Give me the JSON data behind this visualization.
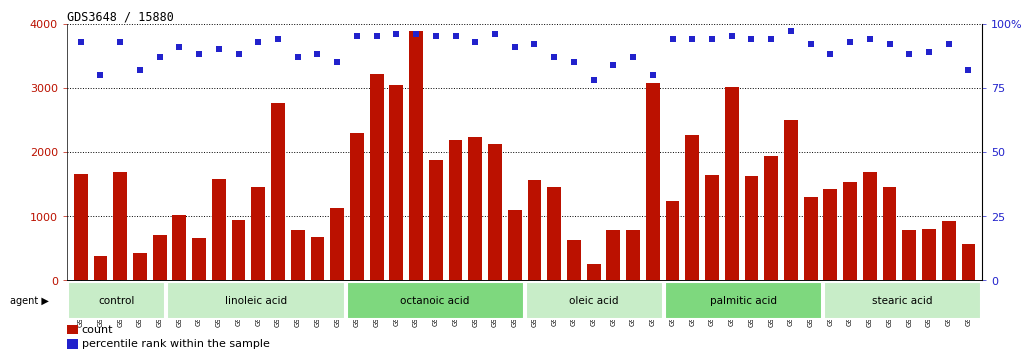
{
  "title": "GDS3648 / 15880",
  "samples": [
    "GSM525196",
    "GSM525197",
    "GSM525198",
    "GSM525199",
    "GSM525200",
    "GSM525201",
    "GSM525202",
    "GSM525203",
    "GSM525204",
    "GSM525205",
    "GSM525206",
    "GSM525207",
    "GSM525208",
    "GSM525209",
    "GSM525210",
    "GSM525211",
    "GSM525212",
    "GSM525213",
    "GSM525214",
    "GSM525215",
    "GSM525216",
    "GSM525217",
    "GSM525218",
    "GSM525219",
    "GSM525220",
    "GSM525221",
    "GSM525222",
    "GSM525223",
    "GSM525224",
    "GSM525225",
    "GSM525226",
    "GSM525227",
    "GSM525228",
    "GSM525229",
    "GSM525230",
    "GSM525231",
    "GSM525232",
    "GSM525233",
    "GSM525234",
    "GSM525235",
    "GSM525236",
    "GSM525237",
    "GSM525238",
    "GSM525239",
    "GSM525240",
    "GSM525241"
  ],
  "counts": [
    1650,
    370,
    1680,
    420,
    700,
    1020,
    660,
    1580,
    940,
    1460,
    2760,
    780,
    670,
    1120,
    2300,
    3220,
    3050,
    3880,
    1870,
    2180,
    2230,
    2120,
    1100,
    1560,
    1460,
    620,
    250,
    790,
    780,
    3080,
    1230,
    2260,
    1640,
    3010,
    1620,
    1930,
    2490,
    1300,
    1420,
    1530,
    1690,
    1460,
    780,
    800,
    930,
    560
  ],
  "percentiles": [
    93,
    80,
    93,
    82,
    87,
    91,
    88,
    90,
    88,
    93,
    94,
    87,
    88,
    85,
    95,
    95,
    96,
    96,
    95,
    95,
    93,
    96,
    91,
    92,
    87,
    85,
    78,
    84,
    87,
    80,
    94,
    94,
    94,
    95,
    94,
    94,
    97,
    92,
    88,
    93,
    94,
    92,
    88,
    89,
    92,
    82
  ],
  "groups": [
    {
      "label": "control",
      "start": 0,
      "end": 4,
      "color": "#c8edc8"
    },
    {
      "label": "linoleic acid",
      "start": 5,
      "end": 13,
      "color": "#c8edc8"
    },
    {
      "label": "octanoic acid",
      "start": 14,
      "end": 22,
      "color": "#7ed87e"
    },
    {
      "label": "oleic acid",
      "start": 23,
      "end": 29,
      "color": "#c8edc8"
    },
    {
      "label": "palmitic acid",
      "start": 30,
      "end": 37,
      "color": "#7ed87e"
    },
    {
      "label": "stearic acid",
      "start": 38,
      "end": 45,
      "color": "#c8edc8"
    }
  ],
  "bar_color": "#bb1100",
  "dot_color": "#2222cc",
  "ylim_left": [
    0,
    4000
  ],
  "ylim_right": [
    0,
    100
  ],
  "yticks_left": [
    0,
    1000,
    2000,
    3000,
    4000
  ],
  "ytick_labels_left": [
    "0",
    "1000",
    "2000",
    "3000",
    "4000"
  ],
  "yticks_right": [
    0,
    25,
    50,
    75,
    100
  ],
  "ytick_labels_right": [
    "0",
    "25",
    "50",
    "75",
    "100%"
  ],
  "plot_bg": "#ffffff",
  "fig_bg": "#ffffff",
  "tick_area_bg": "#d8d8d8"
}
